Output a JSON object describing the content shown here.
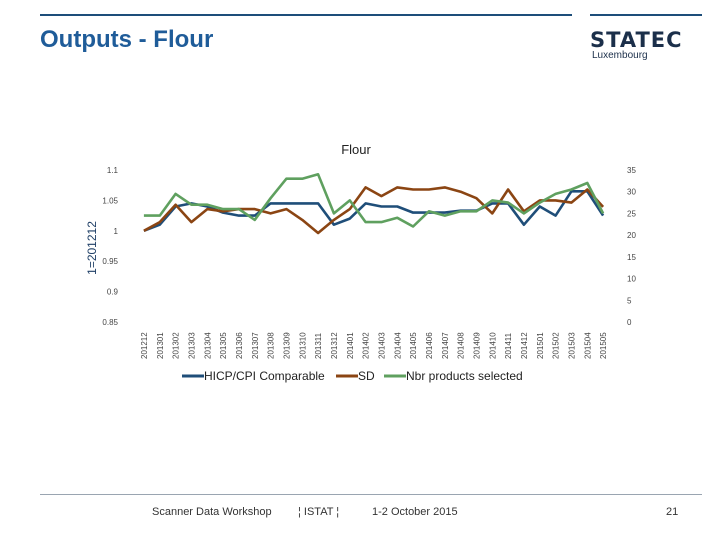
{
  "slide": {
    "title": "Outputs - Flour",
    "logo_main": "STATEC",
    "logo_sub": "Luxembourg",
    "footer_left": "Scanner Data Workshop",
    "footer_mid": "¦ ISTAT ¦",
    "footer_right": "1-2 October 2015",
    "page_number": "21"
  },
  "chart_data": {
    "type": "line",
    "title": "Flour",
    "ylabel": "1=201212",
    "categories": [
      "201212",
      "201301",
      "201302",
      "201303",
      "201304",
      "201305",
      "201306",
      "201307",
      "201308",
      "201309",
      "201310",
      "201311",
      "201312",
      "201401",
      "201402",
      "201403",
      "201404",
      "201405",
      "201406",
      "201407",
      "201408",
      "201409",
      "201410",
      "201411",
      "201412",
      "201501",
      "201502",
      "201503",
      "201504",
      "201505"
    ],
    "ylim_left": [
      0.85,
      1.1
    ],
    "yticks_left": [
      "1.1",
      "1.05",
      "1",
      "0.95",
      "0.9",
      "0.85"
    ],
    "ylim_right": [
      0,
      35
    ],
    "yticks_right": [
      "35",
      "30",
      "25",
      "20",
      "15",
      "10",
      "5",
      "0"
    ],
    "series": [
      {
        "name": "HICP/CPI Comparable",
        "axis": "left",
        "color": "#1f4e79",
        "values": [
          1.0,
          1.01,
          1.04,
          1.045,
          1.04,
          1.03,
          1.025,
          1.025,
          1.045,
          1.045,
          1.045,
          1.045,
          1.01,
          1.02,
          1.045,
          1.04,
          1.04,
          1.03,
          1.03,
          1.03,
          1.033,
          1.033,
          1.045,
          1.045,
          1.01,
          1.04,
          1.025,
          1.065,
          1.065,
          1.025
        ]
      },
      {
        "name": "SD",
        "axis": "right",
        "color": "#8b4513",
        "values": [
          21,
          23,
          27,
          23,
          26,
          25.5,
          26,
          26,
          25,
          26,
          23.5,
          20.5,
          23.5,
          26,
          31,
          29,
          31,
          30.5,
          30.5,
          31,
          30,
          28.5,
          25,
          30.5,
          25.5,
          28,
          28,
          27.5,
          30.5,
          26.5
        ]
      },
      {
        "name": "Nbr products selected",
        "axis": "right",
        "color": "#5fa05f",
        "values": [
          24.5,
          24.5,
          29.5,
          27,
          27,
          26,
          26,
          23.5,
          28.5,
          33,
          33,
          34,
          25,
          28,
          23,
          23,
          24,
          22,
          25.5,
          24.5,
          25.5,
          25.5,
          28,
          27.5,
          25,
          27.5,
          29.5,
          30.5,
          32,
          25
        ]
      }
    ]
  }
}
